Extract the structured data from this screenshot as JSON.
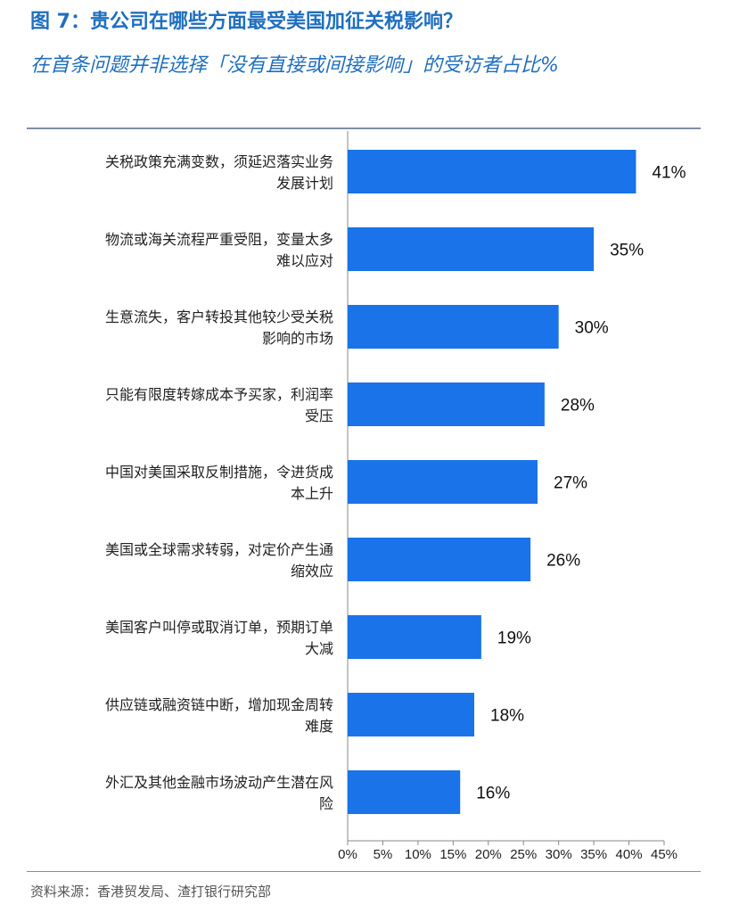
{
  "header": {
    "title": "图 7：贵公司在哪些方面最受美国加征关税影响？",
    "subtitle": "在首条问题并非选择「没有直接或间接影响」的受访者占比%"
  },
  "footer": {
    "source": "资料来源：香港贸发局、渣打银行研究部"
  },
  "colors": {
    "bar": "#1a73e8",
    "title": "#1f6fbf"
  },
  "chart_data": {
    "type": "bar",
    "orientation": "horizontal",
    "categories": [
      [
        "关税政策充满变数，须延迟落实业务",
        "发展计划"
      ],
      [
        "物流或海关流程严重受阻，变量太多",
        "难以应对"
      ],
      [
        "生意流失，客户转投其他较少受关税",
        "影响的市场"
      ],
      [
        "只能有限度转嫁成本予买家，利润率",
        "受压"
      ],
      [
        "中国对美国采取反制措施，令进货成",
        "本上升"
      ],
      [
        "美国或全球需求转弱，对定价产生通",
        "缩效应"
      ],
      [
        "美国客户叫停或取消订单，预期订单",
        "大减"
      ],
      [
        "供应链或融资链中断，增加现金周转",
        "难度"
      ],
      [
        "外汇及其他金融市场波动产生潜在风",
        "险"
      ]
    ],
    "values": [
      41,
      35,
      30,
      28,
      27,
      26,
      19,
      18,
      16
    ],
    "value_labels": [
      "41%",
      "35%",
      "30%",
      "28%",
      "27%",
      "26%",
      "19%",
      "18%",
      "16%"
    ],
    "xlim": [
      0,
      45
    ],
    "xticks": [
      0,
      5,
      10,
      15,
      20,
      25,
      30,
      35,
      40,
      45
    ],
    "xtick_labels": [
      "0%",
      "5%",
      "10%",
      "15%",
      "20%",
      "25%",
      "30%",
      "35%",
      "40%",
      "45%"
    ],
    "grid": false,
    "legend": false
  }
}
